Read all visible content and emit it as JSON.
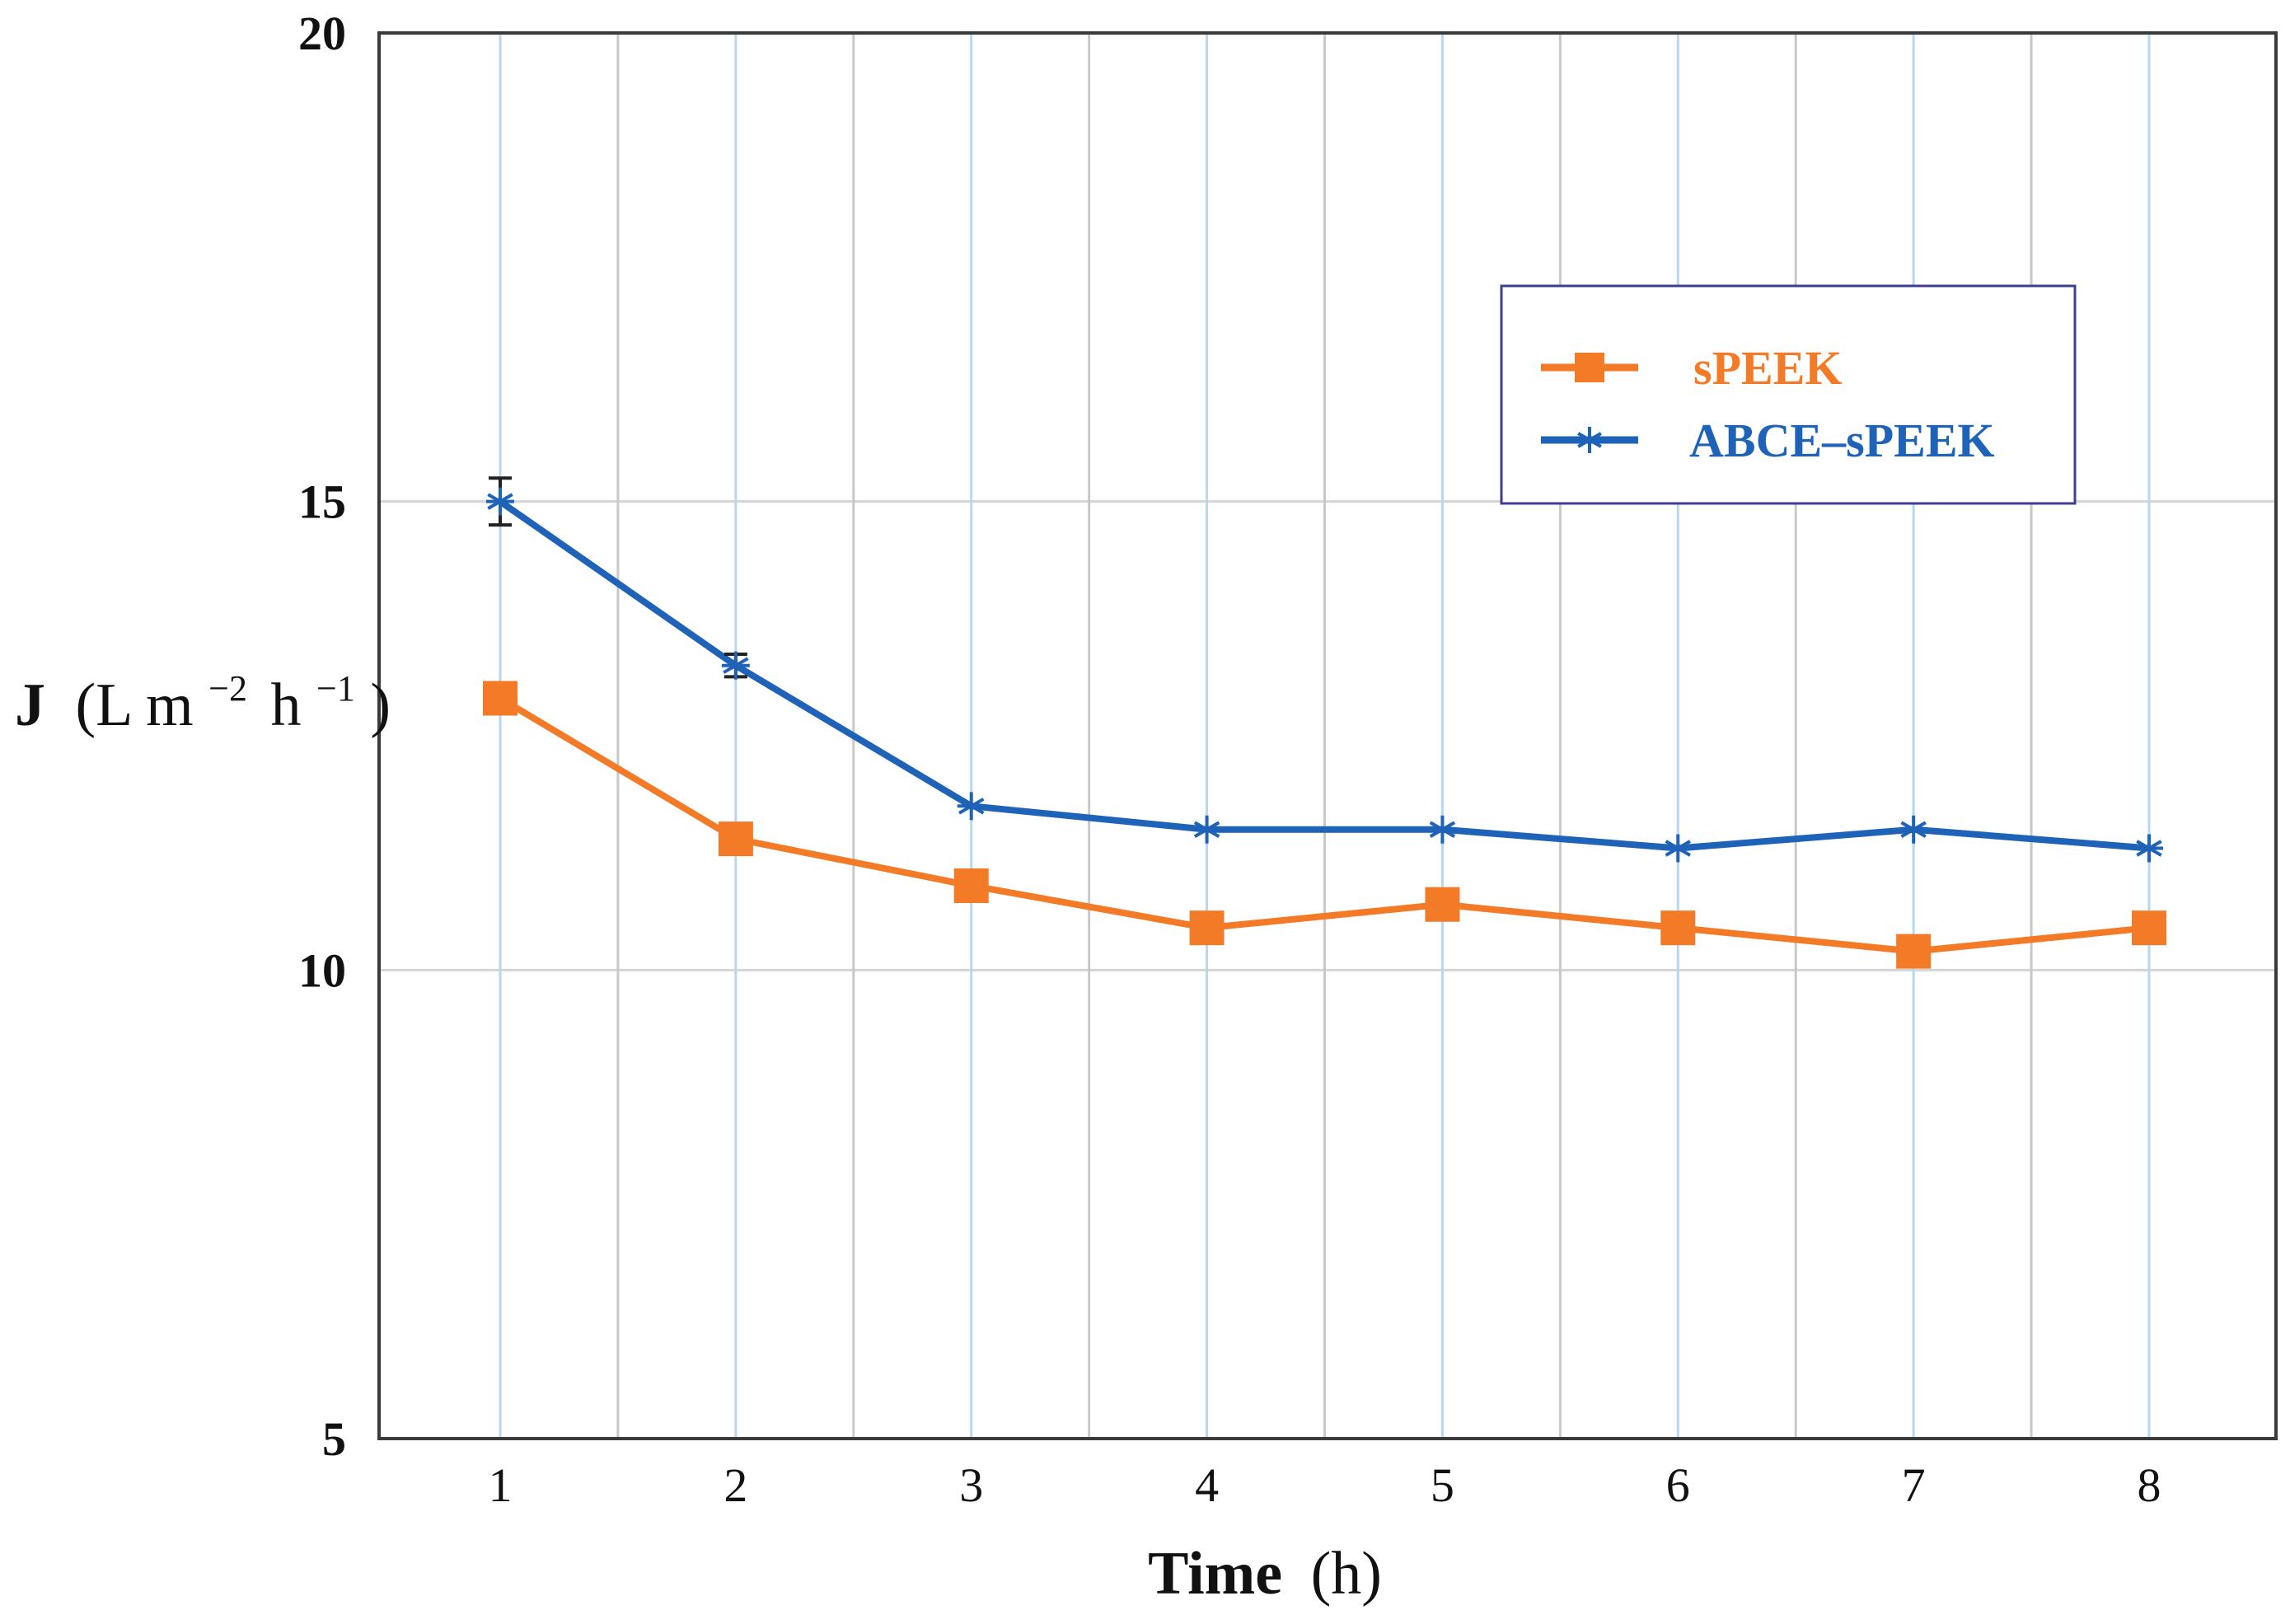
{
  "chart_data": {
    "type": "line",
    "title": "",
    "xlabel": {
      "bold": "Time",
      "rest": "(h)"
    },
    "ylabel": {
      "bold": "J",
      "unit": "(L m",
      "sup1": "−2",
      "mid": "h",
      "sup2": "−1",
      "end": ")"
    },
    "categories": [
      "1",
      "2",
      "3",
      "4",
      "5",
      "6",
      "7",
      "8"
    ],
    "x": [
      1,
      2,
      3,
      4,
      5,
      6,
      7,
      8
    ],
    "ylim": [
      5,
      20
    ],
    "yticks": [
      5,
      10,
      15,
      20
    ],
    "grid": true,
    "legend_position": "right",
    "series": [
      {
        "name": "sPEEK",
        "color": "#F37A26",
        "marker": "square",
        "values": [
          12.9,
          11.4,
          10.9,
          10.45,
          10.7,
          10.45,
          10.2,
          10.45
        ]
      },
      {
        "name": "ABCE–sPEEK",
        "color": "#1F63B8",
        "marker": "asterisk",
        "values": [
          15.0,
          13.25,
          11.75,
          11.5,
          11.5,
          11.3,
          11.5,
          11.3
        ],
        "error": [
          0.25,
          0.12,
          0,
          0,
          0,
          0,
          0,
          0
        ]
      }
    ]
  }
}
